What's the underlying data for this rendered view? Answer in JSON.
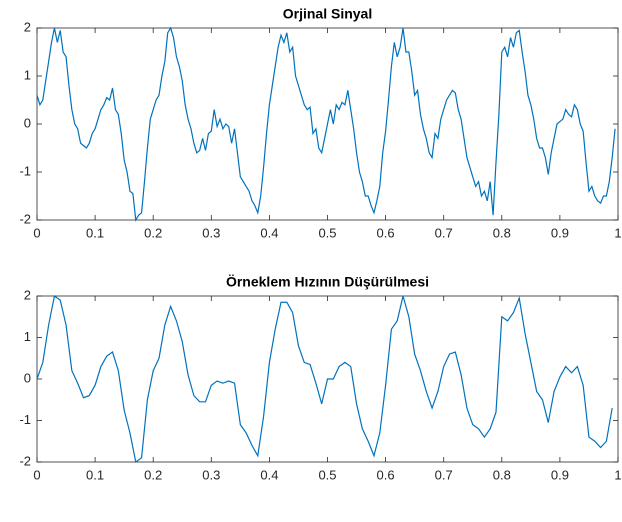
{
  "chart_data": [
    {
      "type": "line",
      "title": "Orjinal Sinyal",
      "x": [
        0,
        0.005,
        0.01,
        0.015,
        0.02,
        0.025,
        0.03,
        0.035,
        0.04,
        0.045,
        0.05,
        0.055,
        0.06,
        0.065,
        0.07,
        0.075,
        0.08,
        0.085,
        0.09,
        0.095,
        0.1,
        0.105,
        0.11,
        0.115,
        0.12,
        0.125,
        0.13,
        0.135,
        0.14,
        0.145,
        0.15,
        0.155,
        0.16,
        0.165,
        0.17,
        0.175,
        0.18,
        0.185,
        0.19,
        0.195,
        0.2,
        0.205,
        0.21,
        0.215,
        0.22,
        0.225,
        0.23,
        0.235,
        0.24,
        0.245,
        0.25,
        0.255,
        0.26,
        0.265,
        0.27,
        0.275,
        0.28,
        0.285,
        0.29,
        0.295,
        0.3,
        0.305,
        0.31,
        0.315,
        0.32,
        0.325,
        0.33,
        0.335,
        0.34,
        0.345,
        0.35,
        0.355,
        0.36,
        0.365,
        0.37,
        0.375,
        0.38,
        0.385,
        0.39,
        0.395,
        0.4,
        0.405,
        0.41,
        0.415,
        0.42,
        0.425,
        0.43,
        0.435,
        0.44,
        0.445,
        0.45,
        0.455,
        0.46,
        0.465,
        0.47,
        0.475,
        0.48,
        0.485,
        0.49,
        0.495,
        0.5,
        0.505,
        0.51,
        0.515,
        0.52,
        0.525,
        0.53,
        0.535,
        0.54,
        0.545,
        0.55,
        0.555,
        0.56,
        0.565,
        0.57,
        0.575,
        0.58,
        0.585,
        0.59,
        0.595,
        0.6,
        0.605,
        0.61,
        0.615,
        0.62,
        0.625,
        0.63,
        0.635,
        0.64,
        0.645,
        0.65,
        0.655,
        0.66,
        0.665,
        0.67,
        0.675,
        0.68,
        0.685,
        0.69,
        0.695,
        0.7,
        0.705,
        0.71,
        0.715,
        0.72,
        0.725,
        0.73,
        0.735,
        0.74,
        0.745,
        0.75,
        0.755,
        0.76,
        0.765,
        0.77,
        0.775,
        0.78,
        0.785,
        0.79,
        0.795,
        0.8,
        0.805,
        0.81,
        0.815,
        0.82,
        0.825,
        0.83,
        0.835,
        0.84,
        0.845,
        0.85,
        0.855,
        0.86,
        0.865,
        0.87,
        0.875,
        0.88,
        0.885,
        0.89,
        0.895,
        0.9,
        0.905,
        0.91,
        0.915,
        0.92,
        0.925,
        0.93,
        0.935,
        0.94,
        0.945,
        0.95,
        0.955,
        0.96,
        0.965,
        0.97,
        0.975,
        0.98,
        0.985,
        0.99,
        0.995
      ],
      "series": [
        {
          "color": "#0072bd",
          "values": [
            0.6,
            0.4,
            0.5,
            0.9,
            1.3,
            1.7,
            2.0,
            1.7,
            1.95,
            1.5,
            1.4,
            0.8,
            0.3,
            0.0,
            -0.1,
            -0.4,
            -0.45,
            -0.5,
            -0.4,
            -0.2,
            -0.1,
            0.1,
            0.3,
            0.4,
            0.55,
            0.5,
            0.75,
            0.3,
            0.2,
            -0.2,
            -0.75,
            -1.0,
            -1.4,
            -1.45,
            -2.0,
            -1.9,
            -1.85,
            -1.2,
            -0.5,
            0.1,
            0.3,
            0.5,
            0.6,
            1.0,
            1.3,
            1.9,
            2.0,
            1.8,
            1.4,
            1.2,
            0.9,
            0.4,
            0.1,
            -0.1,
            -0.4,
            -0.6,
            -0.55,
            -0.3,
            -0.55,
            -0.2,
            -0.15,
            0.3,
            -0.05,
            0.1,
            -0.1,
            0.0,
            -0.05,
            -0.4,
            -0.1,
            -0.6,
            -1.1,
            -1.2,
            -1.3,
            -1.4,
            -1.6,
            -1.7,
            -1.85,
            -1.5,
            -0.9,
            -0.2,
            0.4,
            0.8,
            1.2,
            1.6,
            1.85,
            1.7,
            1.9,
            1.5,
            1.6,
            1.0,
            0.8,
            0.6,
            0.4,
            0.3,
            0.35,
            -0.2,
            -0.1,
            -0.5,
            -0.6,
            -0.3,
            0.0,
            0.3,
            0.0,
            0.4,
            0.3,
            0.45,
            0.4,
            0.7,
            0.3,
            -0.1,
            -0.6,
            -1.0,
            -1.2,
            -1.5,
            -1.5,
            -1.7,
            -1.85,
            -1.6,
            -1.3,
            -0.6,
            -0.15,
            0.5,
            1.2,
            1.7,
            1.4,
            1.6,
            2.0,
            1.5,
            1.5,
            1.1,
            0.6,
            0.7,
            0.2,
            -0.1,
            -0.3,
            -0.6,
            -0.7,
            -0.2,
            -0.3,
            0.1,
            0.3,
            0.5,
            0.6,
            0.7,
            0.65,
            0.3,
            0.1,
            -0.3,
            -0.7,
            -0.9,
            -1.1,
            -1.3,
            -1.2,
            -1.5,
            -1.4,
            -1.6,
            -1.2,
            -1.9,
            -0.8,
            0.2,
            1.5,
            1.6,
            1.4,
            1.8,
            1.6,
            1.9,
            1.95,
            1.5,
            1.1,
            0.6,
            0.4,
            0.1,
            -0.3,
            -0.5,
            -0.5,
            -0.7,
            -1.05,
            -0.6,
            -0.3,
            0.0,
            0.05,
            0.1,
            0.3,
            0.2,
            0.15,
            0.4,
            0.3,
            0.0,
            -0.15,
            -0.8,
            -1.4,
            -1.3,
            -1.5,
            -1.6,
            -1.65,
            -1.5,
            -1.5,
            -1.2,
            -0.7,
            -0.1
          ]
        }
      ],
      "xlim": [
        0,
        1
      ],
      "xticks": [
        0,
        0.1,
        0.2,
        0.3,
        0.4,
        0.5,
        0.6,
        0.7,
        0.8,
        0.9,
        1
      ],
      "ylim": [
        -2,
        2
      ],
      "yticks": [
        -2,
        -1,
        0,
        1,
        2
      ]
    },
    {
      "type": "line",
      "title": "Örneklem Hızının Düşürülmesi",
      "x": [
        0,
        0.01,
        0.02,
        0.03,
        0.04,
        0.05,
        0.06,
        0.07,
        0.08,
        0.09,
        0.1,
        0.11,
        0.12,
        0.13,
        0.14,
        0.15,
        0.16,
        0.17,
        0.18,
        0.19,
        0.2,
        0.21,
        0.22,
        0.23,
        0.24,
        0.25,
        0.26,
        0.27,
        0.28,
        0.29,
        0.3,
        0.31,
        0.32,
        0.33,
        0.34,
        0.35,
        0.36,
        0.37,
        0.38,
        0.39,
        0.4,
        0.41,
        0.42,
        0.43,
        0.44,
        0.45,
        0.46,
        0.47,
        0.48,
        0.49,
        0.5,
        0.51,
        0.52,
        0.53,
        0.54,
        0.55,
        0.56,
        0.57,
        0.58,
        0.59,
        0.6,
        0.61,
        0.62,
        0.63,
        0.64,
        0.65,
        0.66,
        0.67,
        0.68,
        0.69,
        0.7,
        0.71,
        0.72,
        0.73,
        0.74,
        0.75,
        0.76,
        0.77,
        0.78,
        0.79,
        0.8,
        0.81,
        0.82,
        0.83,
        0.84,
        0.85,
        0.86,
        0.87,
        0.88,
        0.89,
        0.9,
        0.91,
        0.92,
        0.93,
        0.94,
        0.95,
        0.96,
        0.97,
        0.98,
        0.99
      ],
      "series": [
        {
          "color": "#0072bd",
          "values": [
            0,
            0.4,
            1.3,
            2.0,
            1.9,
            1.3,
            0.2,
            -0.1,
            -0.45,
            -0.4,
            -0.15,
            0.3,
            0.55,
            0.65,
            0.2,
            -0.75,
            -1.3,
            -2.0,
            -1.9,
            -0.5,
            0.2,
            0.5,
            1.3,
            1.75,
            1.4,
            0.9,
            0.1,
            -0.4,
            -0.55,
            -0.55,
            -0.15,
            -0.05,
            -0.1,
            -0.05,
            -0.1,
            -1.1,
            -1.3,
            -1.6,
            -1.85,
            -0.9,
            0.4,
            1.2,
            1.85,
            1.85,
            1.6,
            0.8,
            0.4,
            0.35,
            -0.1,
            -0.6,
            0.0,
            0.0,
            0.3,
            0.4,
            0.3,
            -0.6,
            -1.2,
            -1.5,
            -1.85,
            -1.3,
            -0.15,
            1.2,
            1.4,
            2.0,
            1.5,
            0.6,
            0.2,
            -0.3,
            -0.7,
            -0.3,
            0.3,
            0.6,
            0.65,
            0.1,
            -0.7,
            -1.1,
            -1.2,
            -1.4,
            -1.2,
            -0.8,
            1.5,
            1.4,
            1.6,
            1.95,
            1.1,
            0.4,
            -0.3,
            -0.5,
            -1.05,
            -0.3,
            0.05,
            0.3,
            0.15,
            0.3,
            -0.15,
            -1.4,
            -1.5,
            -1.65,
            -1.5,
            -0.7
          ]
        }
      ],
      "xlim": [
        0,
        1
      ],
      "xticks": [
        0,
        0.1,
        0.2,
        0.3,
        0.4,
        0.5,
        0.6,
        0.7,
        0.8,
        0.9,
        1
      ],
      "ylim": [
        -2,
        2
      ],
      "yticks": [
        -2,
        -1,
        0,
        1,
        2
      ]
    }
  ]
}
